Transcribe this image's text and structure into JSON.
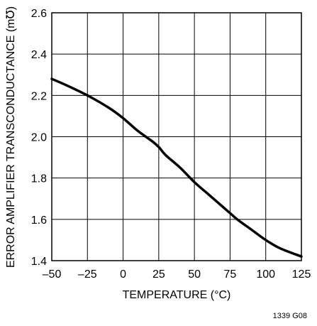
{
  "chart_data": {
    "type": "line",
    "title": "",
    "xlabel": "TEMPERATURE (°C)",
    "ylabel": "ERROR AMPLIFIER TRANSCONDUCTANCE (m℧)",
    "xlim": [
      -50,
      125
    ],
    "ylim": [
      1.4,
      2.6
    ],
    "xticks": [
      "–50",
      "–25",
      "0",
      "25",
      "50",
      "75",
      "100",
      "125"
    ],
    "yticks": [
      "1.4",
      "1.6",
      "1.8",
      "2.0",
      "2.2",
      "2.4",
      "2.6"
    ],
    "grid": true,
    "figure_id": "1339 G08",
    "series": [
      {
        "x": [
          -50,
          -40,
          -25,
          -10,
          0,
          10,
          20,
          25,
          30,
          40,
          50,
          60,
          70,
          75,
          80,
          90,
          100,
          110,
          125
        ],
        "values": [
          2.28,
          2.25,
          2.2,
          2.14,
          2.09,
          2.03,
          1.98,
          1.95,
          1.91,
          1.85,
          1.78,
          1.72,
          1.66,
          1.63,
          1.6,
          1.55,
          1.5,
          1.46,
          1.42
        ]
      }
    ],
    "colors": {
      "line": "#000000",
      "grid": "#000000",
      "background": "#ffffff"
    }
  }
}
